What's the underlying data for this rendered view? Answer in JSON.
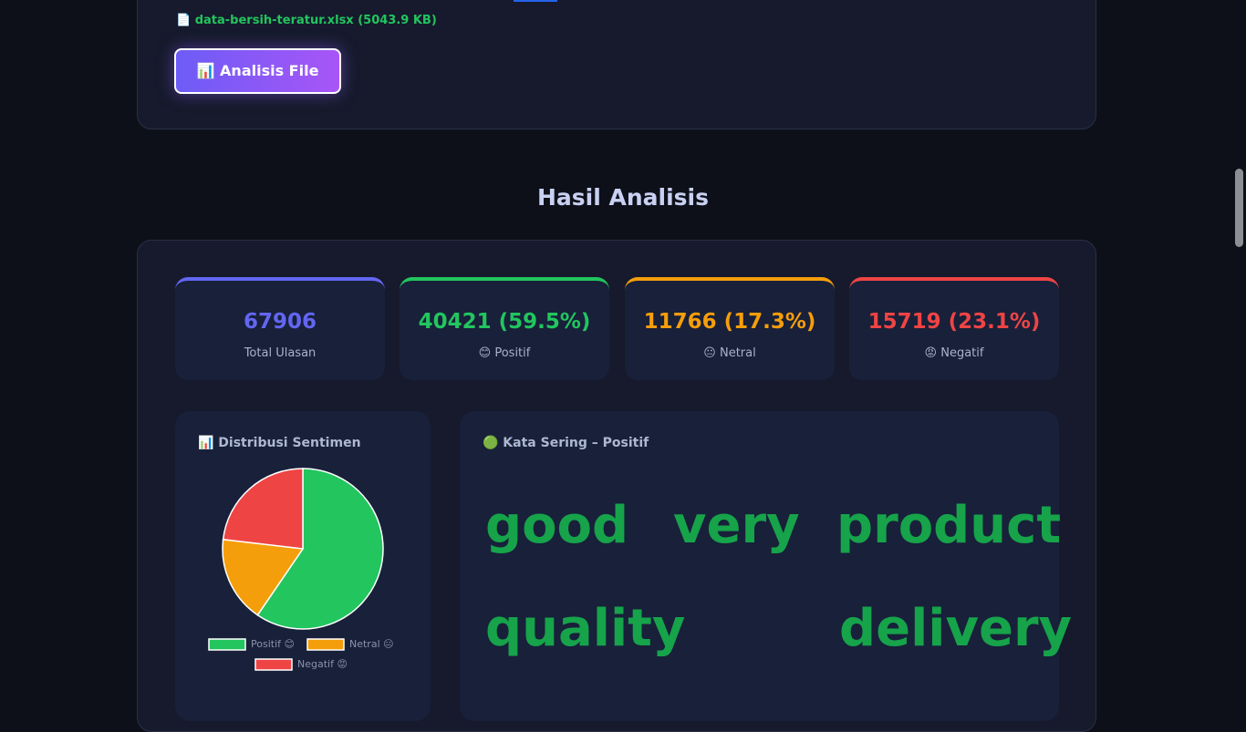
{
  "upload": {
    "file_info": "📄 data-bersih-teratur.xlsx (5043.9 KB)",
    "button": "📊 Analisis File"
  },
  "results": {
    "heading": "Hasil Analisis",
    "stats": [
      {
        "value": "67906",
        "label": "Total Ulasan",
        "color": "#6366f1"
      },
      {
        "value": "40421 (59.5%)",
        "label": "😊 Positif",
        "color": "#22c55e"
      },
      {
        "value": "11766 (17.3%)",
        "label": "😐 Netral",
        "color": "#f59e0b"
      },
      {
        "value": "15719 (23.1%)",
        "label": "😡 Negatif",
        "color": "#ef4444"
      }
    ],
    "words_title": "🟢 Kata Sering – Positif",
    "words": [
      "good",
      "very",
      "product",
      "quality",
      "delivery"
    ]
  },
  "chart_data": {
    "type": "pie",
    "title": "📊 Distribusi Sentimen",
    "categories": [
      "Positif 😊",
      "Netral 😐",
      "Negatif 😡"
    ],
    "values": [
      40421,
      11766,
      15719
    ],
    "colors": [
      "#22c55e",
      "#f59e0b",
      "#ef4444"
    ]
  }
}
